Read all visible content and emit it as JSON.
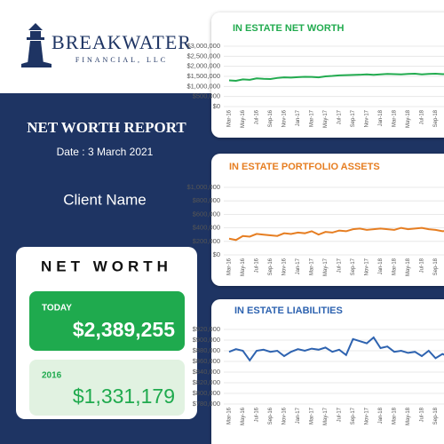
{
  "header": {
    "brand": "BREAKWATER",
    "subbrand": "FINANCIAL, LLC",
    "report_title": "NET WORTH REPORT",
    "date": "Date : 3 March 2021",
    "client": "Client Name"
  },
  "net_worth": {
    "title": "NET WORTH",
    "today_label": "TODAY",
    "today_value": "$2,389,255",
    "base_label": "2016",
    "base_value": "$1,331,179"
  },
  "chart_data": [
    {
      "type": "line",
      "title": "IN ESTATE NET WORTH",
      "color": "#22ab4f",
      "categories": [
        "Mar-16",
        null,
        "May-16",
        null,
        "Jul-16",
        null,
        "Sep-16",
        null,
        "Nov-16",
        null,
        "Jan-17",
        null,
        "Mar-17",
        null,
        "May-17",
        null,
        "Jul-17",
        null,
        "Sep-17",
        null,
        "Nov-17",
        null,
        "Jan-18",
        null,
        "Mar-18",
        null,
        "May-18",
        null,
        "Jul-18",
        null,
        "Sep-18",
        null,
        "Nov-18"
      ],
      "values": [
        1300000,
        1280000,
        1350000,
        1330000,
        1400000,
        1380000,
        1370000,
        1420000,
        1450000,
        1440000,
        1460000,
        1480000,
        1470000,
        1450000,
        1500000,
        1520000,
        1550000,
        1560000,
        1570000,
        1580000,
        1600000,
        1580000,
        1600000,
        1620000,
        1610000,
        1600000,
        1620000,
        1630000,
        1600000,
        1620000,
        1630000,
        1610000,
        1620000
      ],
      "ylim": [
        0,
        3000000
      ],
      "yticks": [
        {
          "value": 0,
          "label": "$0"
        },
        {
          "value": 500000,
          "label": "$500,000"
        },
        {
          "value": 1000000,
          "label": "$1,000,000"
        },
        {
          "value": 1500000,
          "label": "$1,500,000"
        },
        {
          "value": 2000000,
          "label": "$2,000,000"
        },
        {
          "value": 2500000,
          "label": "$2,500,000"
        },
        {
          "value": 3000000,
          "label": "$3,000,000"
        }
      ],
      "grid": true
    },
    {
      "type": "line",
      "title": "IN ESTATE PORTFOLIO ASSETS",
      "color": "#e67e22",
      "categories": [
        "Mar-16",
        null,
        "May-16",
        null,
        "Jul-16",
        null,
        "Sep-16",
        null,
        "Nov-16",
        null,
        "Jan-17",
        null,
        "Mar-17",
        null,
        "May-17",
        null,
        "Jul-17",
        null,
        "Sep-17",
        null,
        "Nov-17",
        null,
        "Jan-18",
        null,
        "Mar-18",
        null,
        "May-18",
        null,
        "Jul-18",
        null,
        "Sep-18",
        null,
        "Nov-18"
      ],
      "values": [
        240000,
        220000,
        280000,
        270000,
        310000,
        300000,
        290000,
        280000,
        320000,
        310000,
        330000,
        320000,
        350000,
        300000,
        340000,
        330000,
        360000,
        350000,
        380000,
        390000,
        370000,
        380000,
        390000,
        380000,
        370000,
        400000,
        380000,
        390000,
        400000,
        380000,
        370000,
        350000,
        360000
      ],
      "ylim": [
        0,
        1000000
      ],
      "yticks": [
        {
          "value": 0,
          "label": "$0"
        },
        {
          "value": 200000,
          "label": "$200,000"
        },
        {
          "value": 400000,
          "label": "$400,000"
        },
        {
          "value": 600000,
          "label": "$600,000"
        },
        {
          "value": 800000,
          "label": "$800,000"
        },
        {
          "value": 1000000,
          "label": "$1,000,000"
        }
      ],
      "grid": true
    },
    {
      "type": "line",
      "title": "IN ESTATE LIABILITIES",
      "color": "#2e63b0",
      "categories": [
        "Mar-16",
        null,
        "May-16",
        null,
        "Jul-16",
        null,
        "Sep-16",
        null,
        "Nov-16",
        null,
        "Jan-17",
        null,
        "Mar-17",
        null,
        "May-17",
        null,
        "Jul-17",
        null,
        "Sep-17",
        null,
        "Nov-17",
        null,
        "Jan-18",
        null,
        "Mar-18",
        null,
        "May-18",
        null,
        "Jul-18",
        null,
        "Sep-18",
        null,
        "Nov-18"
      ],
      "values": [
        878000,
        883000,
        880000,
        862000,
        880000,
        882000,
        878000,
        880000,
        870000,
        878000,
        883000,
        880000,
        884000,
        882000,
        886000,
        878000,
        882000,
        872000,
        902000,
        898000,
        894000,
        905000,
        885000,
        888000,
        878000,
        880000,
        876000,
        878000,
        870000,
        880000,
        866000,
        874000,
        868000
      ],
      "ylim": [
        780000,
        920000
      ],
      "yticks": [
        {
          "value": 780000,
          "label": "$780,000"
        },
        {
          "value": 800000,
          "label": "$800,000"
        },
        {
          "value": 820000,
          "label": "$820,000"
        },
        {
          "value": 840000,
          "label": "$840,000"
        },
        {
          "value": 860000,
          "label": "$860,000"
        },
        {
          "value": 880000,
          "label": "$880,000"
        },
        {
          "value": 900000,
          "label": "$900,000"
        },
        {
          "value": 920000,
          "label": "$920,000"
        }
      ],
      "grid": true
    }
  ]
}
